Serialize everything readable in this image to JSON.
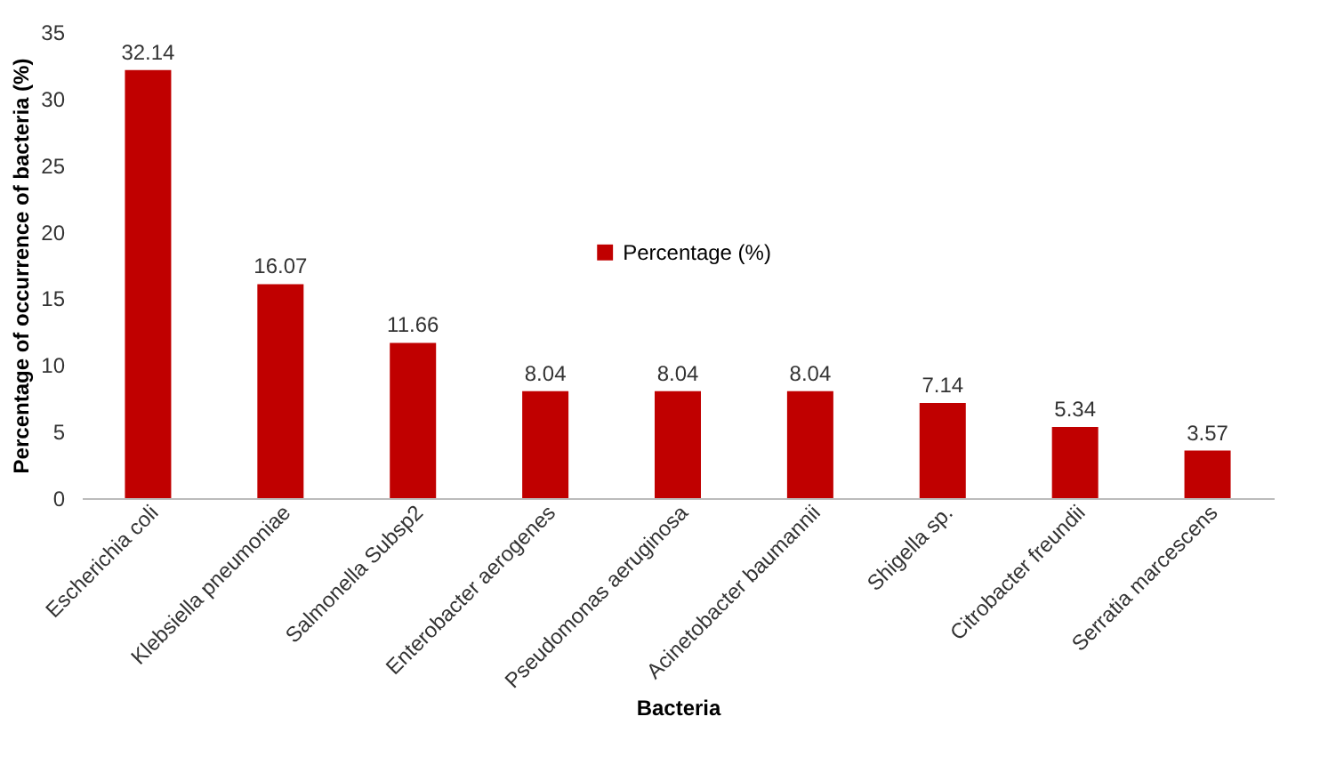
{
  "chart_data": {
    "type": "bar",
    "categories": [
      "Escherichia coli",
      "Klebsiella pneumoniae",
      "Salmonella Subsp2",
      "Enterobacter aerogenes",
      "Pseudomonas aeruginosa",
      "Acinetobacter baumannii",
      "Shigella sp.",
      "Citrobacter freundii",
      "Serratia marcescens"
    ],
    "series": [
      {
        "name": "Percentage (%)",
        "color": "#c00000",
        "values": [
          32.14,
          16.07,
          11.66,
          8.04,
          8.04,
          8.04,
          7.14,
          5.34,
          3.57
        ]
      }
    ],
    "xlabel": "Bacteria",
    "ylabel": "Percentage of occurrence of bacteria (%)",
    "ylim": [
      0,
      35
    ],
    "yticks": [
      0,
      5,
      10,
      15,
      20,
      25,
      30,
      35
    ],
    "grid": false,
    "legend": "center",
    "data_labels": true
  }
}
